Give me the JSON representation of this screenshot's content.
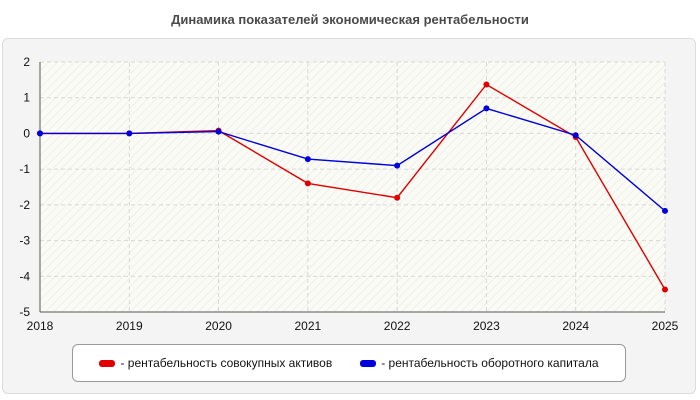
{
  "chart_data": {
    "type": "line",
    "title": "Динамика показателей экономическая рентабельности",
    "x": [
      "2018",
      "2019",
      "2020",
      "2021",
      "2022",
      "2023",
      "2024",
      "2025"
    ],
    "ylim": [
      -5,
      2
    ],
    "yticks": [
      "2",
      "1",
      "0",
      "-1",
      "-2",
      "-3",
      "-4",
      "-5"
    ],
    "grid": true,
    "legend_position": "bottom",
    "series": [
      {
        "name": "- рентабельность совокупных активов",
        "color": "#e00000",
        "values": [
          0,
          0,
          0.08,
          -1.4,
          -1.8,
          1.37,
          -0.1,
          -4.37
        ]
      },
      {
        "name": "- рентабельность оборотного капитала",
        "color": "#0000dd",
        "values": [
          0,
          0,
          0.05,
          -0.72,
          -0.9,
          0.7,
          -0.05,
          -2.17
        ]
      }
    ]
  }
}
